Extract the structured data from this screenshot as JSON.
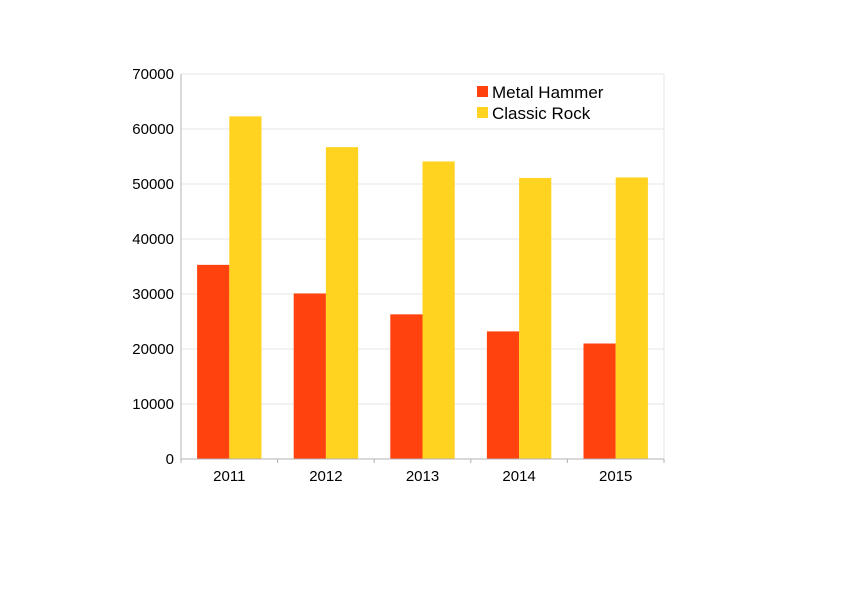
{
  "chart_data": {
    "type": "bar",
    "categories": [
      "2011",
      "2012",
      "2013",
      "2014",
      "2015"
    ],
    "series": [
      {
        "name": "Metal Hammer",
        "color": "#ff420e",
        "values": [
          35300,
          30100,
          26300,
          23200,
          21000
        ]
      },
      {
        "name": "Classic Rock",
        "color": "#ffd320",
        "values": [
          62300,
          56700,
          54100,
          51100,
          51200
        ]
      }
    ],
    "ylim": [
      0,
      70000
    ],
    "yticks": [
      0,
      10000,
      20000,
      30000,
      40000,
      50000,
      60000,
      70000
    ],
    "grid": true,
    "legend_position": "top-right"
  }
}
